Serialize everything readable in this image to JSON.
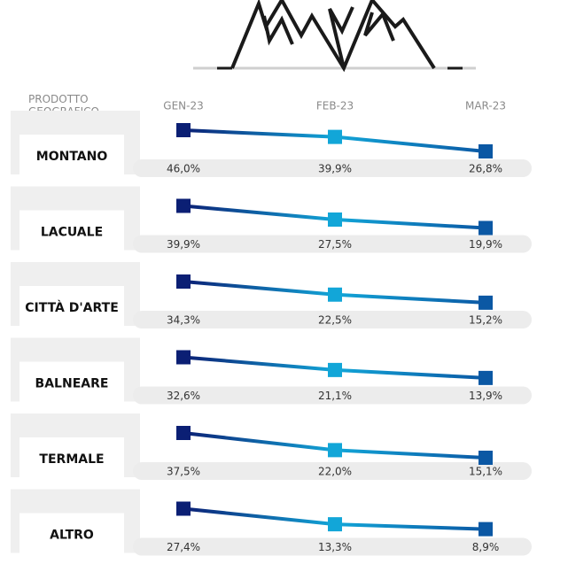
{
  "chart_data": {
    "type": "line",
    "row_header": "PRODOTTO GEOGRAFICO",
    "categories": [
      "GEN-23",
      "FEB-23",
      "MAR-23"
    ],
    "marker_colors": [
      "#0b1f74",
      "#12a6d8",
      "#0b58a4"
    ],
    "series": [
      {
        "name": "MONTANO",
        "values": [
          46.0,
          39.9,
          26.8
        ],
        "value_labels": [
          "46,0%",
          "39,9%",
          "26,8%"
        ]
      },
      {
        "name": "LACUALE",
        "values": [
          39.9,
          27.5,
          19.9
        ],
        "value_labels": [
          "39,9%",
          "27,5%",
          "19,9%"
        ]
      },
      {
        "name": "CITTÀ D'ARTE",
        "values": [
          34.3,
          22.5,
          15.2
        ],
        "value_labels": [
          "34,3%",
          "22,5%",
          "15,2%"
        ]
      },
      {
        "name": "BALNEARE",
        "values": [
          32.6,
          21.1,
          13.9
        ],
        "value_labels": [
          "32,6%",
          "21,1%",
          "13,9%"
        ]
      },
      {
        "name": "TERMALE",
        "values": [
          37.5,
          22.0,
          15.1
        ],
        "value_labels": [
          "37,5%",
          "22,0%",
          "15,1%"
        ]
      },
      {
        "name": "ALTRO",
        "values": [
          27.4,
          13.3,
          8.9
        ],
        "value_labels": [
          "27,4%",
          "13,3%",
          "8,9%"
        ]
      }
    ]
  }
}
